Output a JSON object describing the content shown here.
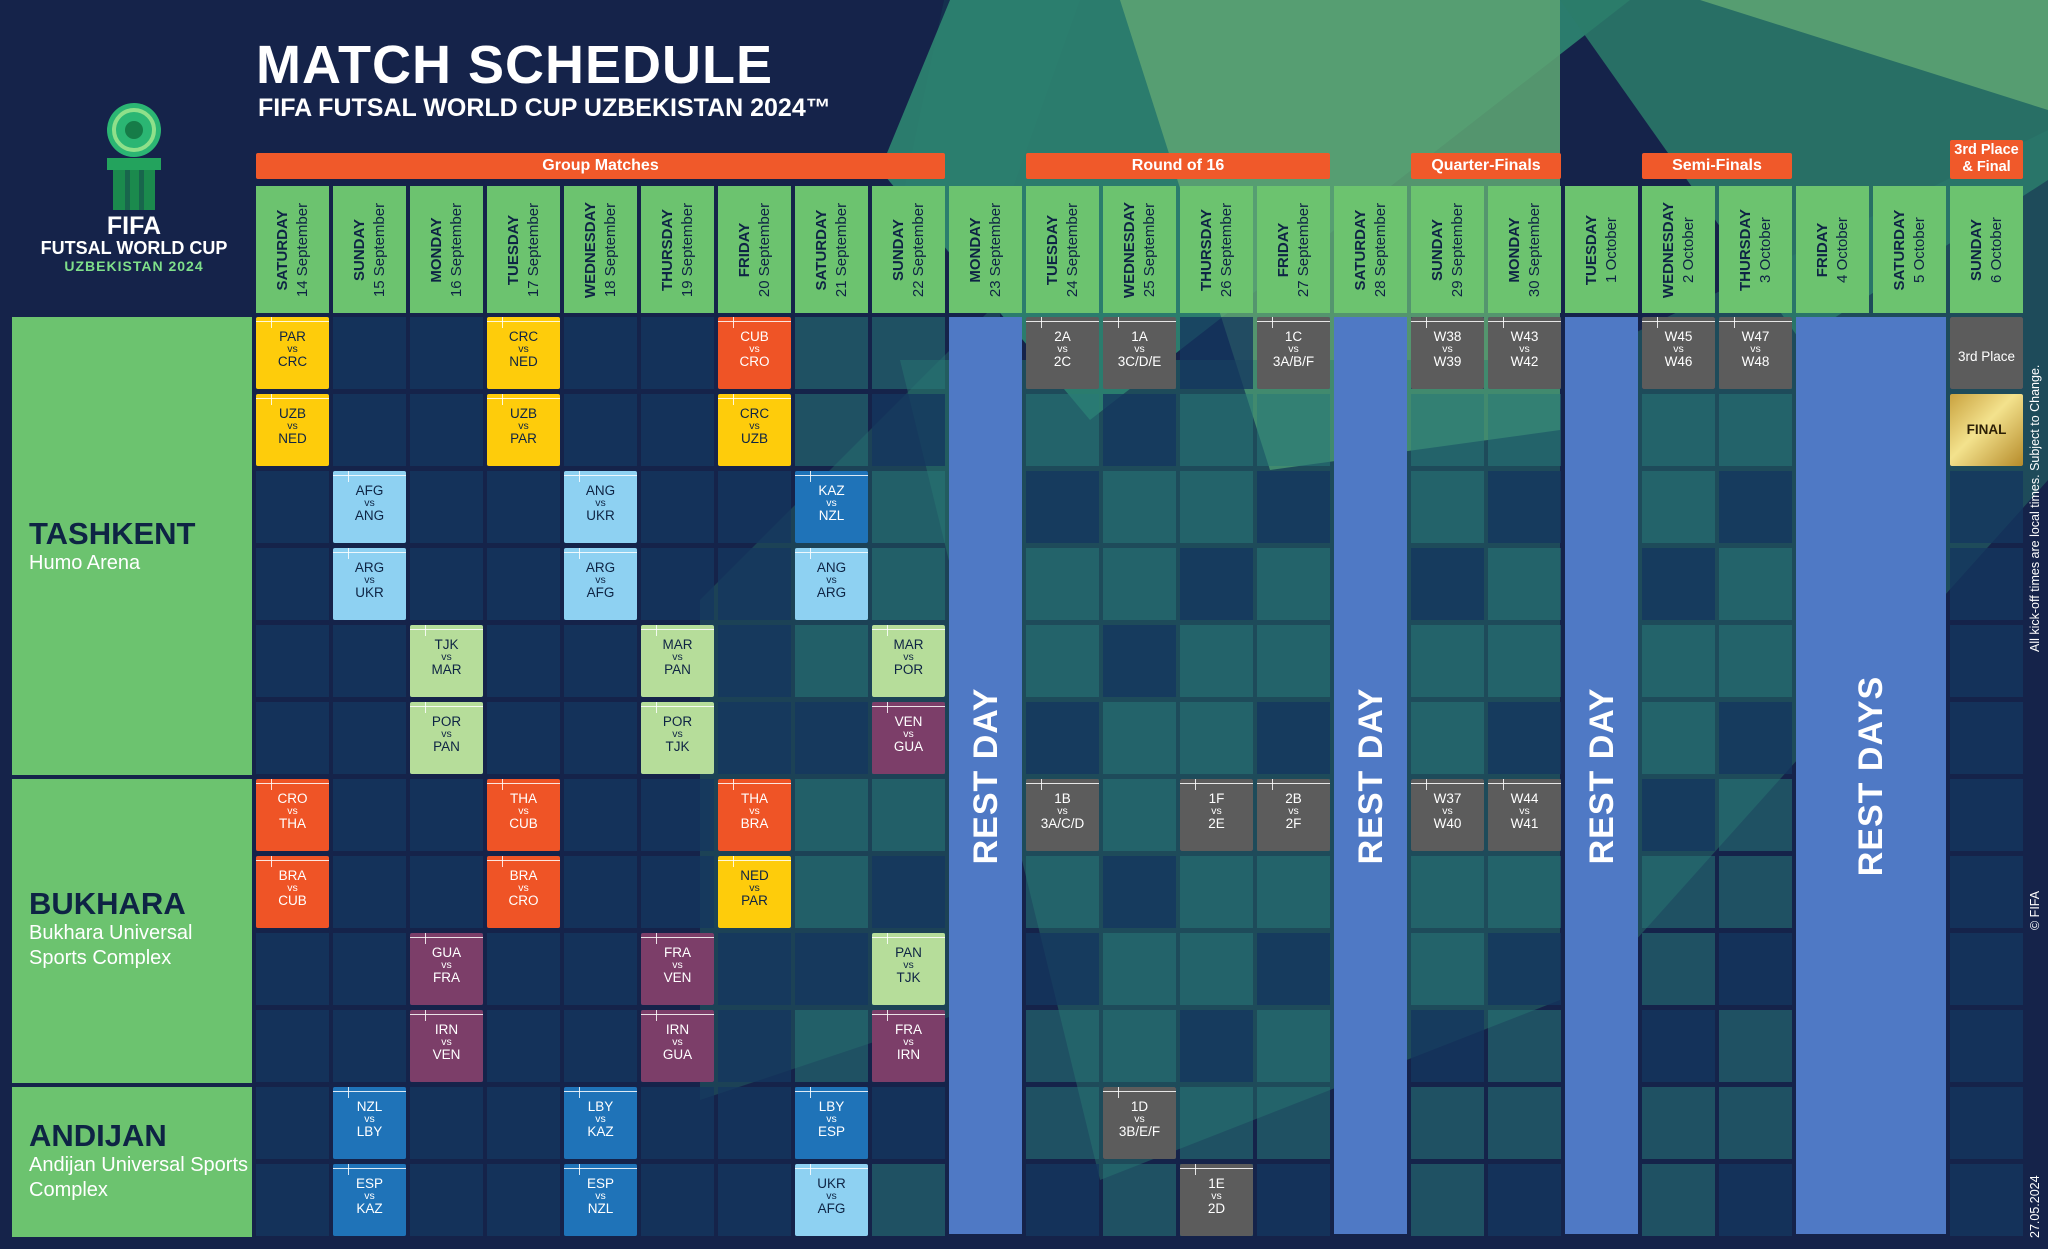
{
  "header": {
    "title": "MATCH SCHEDULE",
    "subtitle": "FIFA FUTSAL WORLD CUP UZBEKISTAN 2024™"
  },
  "logo": {
    "line1": "FIFA",
    "line2": "FUTSAL WORLD CUP",
    "line3": "UZBEKISTAN 2024"
  },
  "phases": [
    {
      "label": "Group Matches"
    },
    {
      "label": "Round of 16"
    },
    {
      "label": "Quarter-Finals"
    },
    {
      "label": "Semi-Finals"
    },
    {
      "label": "3rd Place & Final"
    }
  ],
  "days": [
    {
      "weekday": "SATURDAY",
      "date": "14 September"
    },
    {
      "weekday": "SUNDAY",
      "date": "15 September"
    },
    {
      "weekday": "MONDAY",
      "date": "16 September"
    },
    {
      "weekday": "TUESDAY",
      "date": "17 September"
    },
    {
      "weekday": "WEDNESDAY",
      "date": "18 September"
    },
    {
      "weekday": "THURSDAY",
      "date": "19 September"
    },
    {
      "weekday": "FRIDAY",
      "date": "20 September"
    },
    {
      "weekday": "SATURDAY",
      "date": "21 September"
    },
    {
      "weekday": "SUNDAY",
      "date": "22 September"
    },
    {
      "weekday": "MONDAY",
      "date": "23 September"
    },
    {
      "weekday": "TUESDAY",
      "date": "24 September"
    },
    {
      "weekday": "WEDNESDAY",
      "date": "25 September"
    },
    {
      "weekday": "THURSDAY",
      "date": "26 September"
    },
    {
      "weekday": "FRIDAY",
      "date": "27 September"
    },
    {
      "weekday": "SATURDAY",
      "date": "28 September"
    },
    {
      "weekday": "SUNDAY",
      "date": "29 September"
    },
    {
      "weekday": "MONDAY",
      "date": "30 September"
    },
    {
      "weekday": "TUESDAY",
      "date": "1 October"
    },
    {
      "weekday": "WEDNESDAY",
      "date": "2 October"
    },
    {
      "weekday": "THURSDAY",
      "date": "3 October"
    },
    {
      "weekday": "FRIDAY",
      "date": "4 October"
    },
    {
      "weekday": "SATURDAY",
      "date": "5 October"
    },
    {
      "weekday": "SUNDAY",
      "date": "6 October"
    }
  ],
  "venues": [
    {
      "city": "TASHKENT",
      "venue": "Humo Arena"
    },
    {
      "city": "BUKHARA",
      "venue": "Bukhara Universal Sports Complex"
    },
    {
      "city": "ANDIJAN",
      "venue": "Andijan Universal Sports Complex"
    }
  ],
  "rest_labels": [
    "REST DAY",
    "REST DAY",
    "REST DAY",
    "REST DAYS"
  ],
  "vs_label": "vs",
  "colors": {
    "group_a": "#fecc0b",
    "group_b": "#ef5426",
    "group_c": "#8ed1f2",
    "group_d": "#1f73b8",
    "group_e": "#b6dd9a",
    "group_f": "#7c3e69",
    "knockout": "#5c5c5c",
    "rest": "#4f79c5",
    "header_green": "#6cc36f",
    "phase_orange": "#f0592a"
  },
  "matches": [
    {
      "row": 0,
      "col": 0,
      "a": "PAR",
      "b": "CRC",
      "color": "yellow"
    },
    {
      "row": 1,
      "col": 0,
      "a": "UZB",
      "b": "NED",
      "color": "yellow"
    },
    {
      "row": 0,
      "col": 3,
      "a": "CRC",
      "b": "NED",
      "color": "yellow"
    },
    {
      "row": 1,
      "col": 3,
      "a": "UZB",
      "b": "PAR",
      "color": "yellow"
    },
    {
      "row": 0,
      "col": 6,
      "a": "CUB",
      "b": "CRO",
      "color": "orange"
    },
    {
      "row": 1,
      "col": 6,
      "a": "CRC",
      "b": "UZB",
      "color": "yellow"
    },
    {
      "row": 2,
      "col": 1,
      "a": "AFG",
      "b": "ANG",
      "color": "lblue"
    },
    {
      "row": 3,
      "col": 1,
      "a": "ARG",
      "b": "UKR",
      "color": "lblue"
    },
    {
      "row": 2,
      "col": 4,
      "a": "ANG",
      "b": "UKR",
      "color": "lblue"
    },
    {
      "row": 3,
      "col": 4,
      "a": "ARG",
      "b": "AFG",
      "color": "lblue"
    },
    {
      "row": 2,
      "col": 7,
      "a": "KAZ",
      "b": "NZL",
      "color": "dblue"
    },
    {
      "row": 3,
      "col": 7,
      "a": "ANG",
      "b": "ARG",
      "color": "lblue"
    },
    {
      "row": 4,
      "col": 2,
      "a": "TJK",
      "b": "MAR",
      "color": "lgreen"
    },
    {
      "row": 5,
      "col": 2,
      "a": "POR",
      "b": "PAN",
      "color": "lgreen"
    },
    {
      "row": 4,
      "col": 5,
      "a": "MAR",
      "b": "PAN",
      "color": "lgreen"
    },
    {
      "row": 5,
      "col": 5,
      "a": "POR",
      "b": "TJK",
      "color": "lgreen"
    },
    {
      "row": 4,
      "col": 8,
      "a": "MAR",
      "b": "POR",
      "color": "lgreen"
    },
    {
      "row": 5,
      "col": 8,
      "a": "VEN",
      "b": "GUA",
      "color": "purple"
    },
    {
      "row": 6,
      "col": 0,
      "a": "CRO",
      "b": "THA",
      "color": "orange"
    },
    {
      "row": 7,
      "col": 0,
      "a": "BRA",
      "b": "CUB",
      "color": "orange"
    },
    {
      "row": 6,
      "col": 3,
      "a": "THA",
      "b": "CUB",
      "color": "orange"
    },
    {
      "row": 7,
      "col": 3,
      "a": "BRA",
      "b": "CRO",
      "color": "orange"
    },
    {
      "row": 6,
      "col": 6,
      "a": "THA",
      "b": "BRA",
      "color": "orange"
    },
    {
      "row": 7,
      "col": 6,
      "a": "NED",
      "b": "PAR",
      "color": "yellow"
    },
    {
      "row": 8,
      "col": 2,
      "a": "GUA",
      "b": "FRA",
      "color": "purple"
    },
    {
      "row": 9,
      "col": 2,
      "a": "IRN",
      "b": "VEN",
      "color": "purple"
    },
    {
      "row": 8,
      "col": 5,
      "a": "FRA",
      "b": "VEN",
      "color": "purple"
    },
    {
      "row": 9,
      "col": 5,
      "a": "IRN",
      "b": "GUA",
      "color": "purple"
    },
    {
      "row": 8,
      "col": 8,
      "a": "PAN",
      "b": "TJK",
      "color": "lgreen"
    },
    {
      "row": 9,
      "col": 8,
      "a": "FRA",
      "b": "IRN",
      "color": "purple"
    },
    {
      "row": 10,
      "col": 1,
      "a": "NZL",
      "b": "LBY",
      "color": "dblue"
    },
    {
      "row": 11,
      "col": 1,
      "a": "ESP",
      "b": "KAZ",
      "color": "dblue"
    },
    {
      "row": 10,
      "col": 4,
      "a": "LBY",
      "b": "KAZ",
      "color": "dblue"
    },
    {
      "row": 11,
      "col": 4,
      "a": "ESP",
      "b": "NZL",
      "color": "dblue"
    },
    {
      "row": 10,
      "col": 7,
      "a": "LBY",
      "b": "ESP",
      "color": "dblue"
    },
    {
      "row": 11,
      "col": 7,
      "a": "UKR",
      "b": "AFG",
      "color": "lblue"
    },
    {
      "row": 0,
      "col": 10,
      "a": "2A",
      "b": "2C",
      "color": "grey"
    },
    {
      "row": 0,
      "col": 11,
      "a": "1A",
      "b": "3C/D/E",
      "color": "grey"
    },
    {
      "row": 0,
      "col": 13,
      "a": "1C",
      "b": "3A/B/F",
      "color": "grey"
    },
    {
      "row": 6,
      "col": 10,
      "a": "1B",
      "b": "3A/C/D",
      "color": "grey"
    },
    {
      "row": 6,
      "col": 12,
      "a": "1F",
      "b": "2E",
      "color": "grey"
    },
    {
      "row": 6,
      "col": 13,
      "a": "2B",
      "b": "2F",
      "color": "grey"
    },
    {
      "row": 10,
      "col": 11,
      "a": "1D",
      "b": "3B/E/F",
      "color": "grey"
    },
    {
      "row": 11,
      "col": 12,
      "a": "1E",
      "b": "2D",
      "color": "grey"
    },
    {
      "row": 0,
      "col": 15,
      "a": "W38",
      "b": "W39",
      "color": "grey"
    },
    {
      "row": 0,
      "col": 16,
      "a": "W43",
      "b": "W42",
      "color": "grey"
    },
    {
      "row": 6,
      "col": 15,
      "a": "W37",
      "b": "W40",
      "color": "grey"
    },
    {
      "row": 6,
      "col": 16,
      "a": "W44",
      "b": "W41",
      "color": "grey"
    },
    {
      "row": 0,
      "col": 18,
      "a": "W45",
      "b": "W46",
      "color": "grey"
    },
    {
      "row": 0,
      "col": 19,
      "a": "W47",
      "b": "W48",
      "color": "grey"
    }
  ],
  "specials": [
    {
      "row": 0,
      "col": 22,
      "label": "3rd Place",
      "kind": "third"
    },
    {
      "row": 1,
      "col": 22,
      "label": "FINAL",
      "kind": "final"
    }
  ],
  "side_notes": {
    "kickoff": "All kick-off times are local times. Subject to Change.",
    "copyright": "© FIFA",
    "date": "27.05.2024"
  }
}
